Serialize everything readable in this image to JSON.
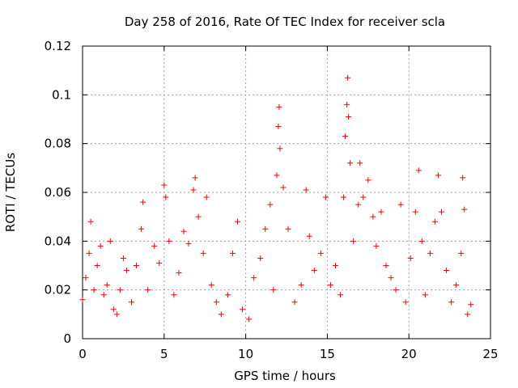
{
  "chart_data": {
    "type": "scatter",
    "title": "Day 258 of 2016, Rate Of TEC Index for receiver scla",
    "xlabel": "GPS time / hours",
    "ylabel": "ROTI / TECUs",
    "xlim": [
      0,
      25
    ],
    "ylim": [
      0,
      0.12
    ],
    "xticks": [
      0,
      5,
      10,
      15,
      20,
      25
    ],
    "xtick_labels": [
      "0",
      "5",
      "10",
      "15",
      "20",
      "25"
    ],
    "yticks": [
      0,
      0.02,
      0.04,
      0.06,
      0.08,
      0.1,
      0.12
    ],
    "ytick_labels": [
      "0",
      "0.02",
      "0.04",
      "0.06",
      "0.08",
      "0.1",
      "0.12"
    ],
    "grid": true,
    "marker": "+",
    "color": "#ff0000",
    "series": [
      {
        "name": "ROTI",
        "points": [
          [
            0.0,
            0.016
          ],
          [
            0.2,
            0.025
          ],
          [
            0.4,
            0.035
          ],
          [
            0.5,
            0.048
          ],
          [
            0.7,
            0.02
          ],
          [
            0.9,
            0.03
          ],
          [
            1.1,
            0.038
          ],
          [
            1.3,
            0.018
          ],
          [
            1.5,
            0.022
          ],
          [
            1.7,
            0.04
          ],
          [
            1.9,
            0.012
          ],
          [
            2.1,
            0.01
          ],
          [
            2.3,
            0.02
          ],
          [
            2.5,
            0.033
          ],
          [
            2.7,
            0.028
          ],
          [
            3.0,
            0.015
          ],
          [
            3.3,
            0.03
          ],
          [
            3.6,
            0.045
          ],
          [
            3.7,
            0.056
          ],
          [
            4.0,
            0.02
          ],
          [
            4.4,
            0.038
          ],
          [
            4.7,
            0.031
          ],
          [
            5.0,
            0.063
          ],
          [
            5.1,
            0.058
          ],
          [
            5.3,
            0.04
          ],
          [
            5.6,
            0.018
          ],
          [
            5.9,
            0.027
          ],
          [
            6.2,
            0.044
          ],
          [
            6.5,
            0.039
          ],
          [
            6.8,
            0.061
          ],
          [
            6.9,
            0.066
          ],
          [
            7.1,
            0.05
          ],
          [
            7.4,
            0.035
          ],
          [
            7.6,
            0.058
          ],
          [
            7.9,
            0.022
          ],
          [
            8.2,
            0.015
          ],
          [
            8.5,
            0.01
          ],
          [
            8.9,
            0.018
          ],
          [
            9.2,
            0.035
          ],
          [
            9.5,
            0.048
          ],
          [
            9.8,
            0.012
          ],
          [
            10.2,
            0.008
          ],
          [
            10.5,
            0.025
          ],
          [
            10.9,
            0.033
          ],
          [
            11.2,
            0.045
          ],
          [
            11.5,
            0.055
          ],
          [
            11.7,
            0.02
          ],
          [
            11.9,
            0.067
          ],
          [
            12.0,
            0.087
          ],
          [
            12.05,
            0.095
          ],
          [
            12.1,
            0.078
          ],
          [
            12.3,
            0.062
          ],
          [
            12.6,
            0.045
          ],
          [
            13.0,
            0.015
          ],
          [
            13.4,
            0.022
          ],
          [
            13.7,
            0.061
          ],
          [
            13.9,
            0.042
          ],
          [
            14.2,
            0.028
          ],
          [
            14.6,
            0.035
          ],
          [
            14.9,
            0.058
          ],
          [
            15.2,
            0.022
          ],
          [
            15.5,
            0.03
          ],
          [
            15.8,
            0.018
          ],
          [
            16.0,
            0.058
          ],
          [
            16.1,
            0.083
          ],
          [
            16.2,
            0.096
          ],
          [
            16.25,
            0.107
          ],
          [
            16.3,
            0.091
          ],
          [
            16.4,
            0.072
          ],
          [
            16.6,
            0.04
          ],
          [
            16.9,
            0.055
          ],
          [
            17.0,
            0.072
          ],
          [
            17.2,
            0.058
          ],
          [
            17.5,
            0.065
          ],
          [
            17.8,
            0.05
          ],
          [
            18.0,
            0.038
          ],
          [
            18.3,
            0.052
          ],
          [
            18.6,
            0.03
          ],
          [
            18.9,
            0.025
          ],
          [
            19.2,
            0.02
          ],
          [
            19.5,
            0.055
          ],
          [
            19.8,
            0.015
          ],
          [
            20.1,
            0.033
          ],
          [
            20.4,
            0.052
          ],
          [
            20.6,
            0.069
          ],
          [
            20.8,
            0.04
          ],
          [
            21.0,
            0.018
          ],
          [
            21.3,
            0.035
          ],
          [
            21.6,
            0.048
          ],
          [
            21.8,
            0.067
          ],
          [
            22.0,
            0.052
          ],
          [
            22.3,
            0.028
          ],
          [
            22.6,
            0.015
          ],
          [
            22.9,
            0.022
          ],
          [
            23.2,
            0.035
          ],
          [
            23.3,
            0.066
          ],
          [
            23.4,
            0.053
          ],
          [
            23.6,
            0.01
          ],
          [
            23.8,
            0.014
          ]
        ]
      }
    ]
  }
}
